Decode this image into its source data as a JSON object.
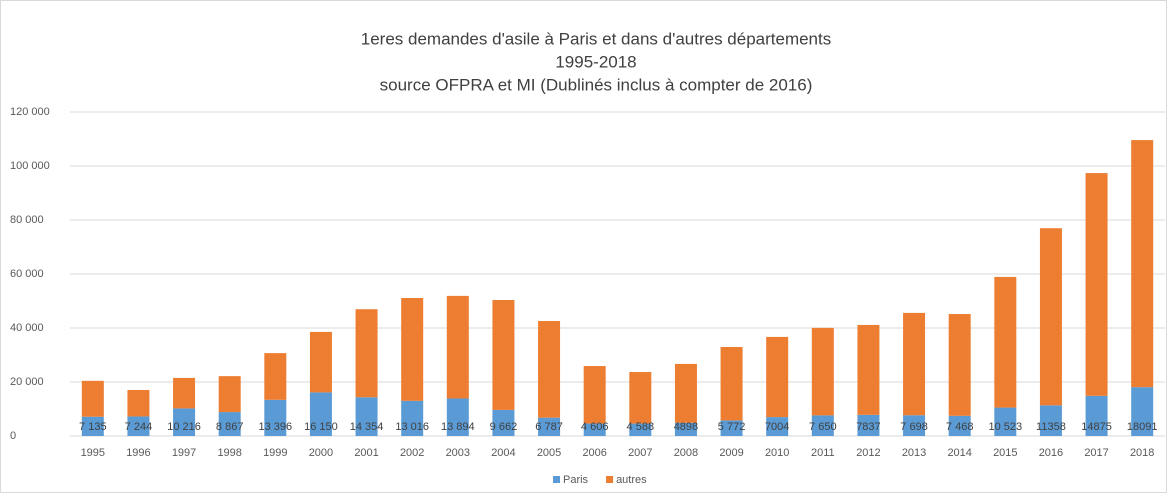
{
  "chart_data": {
    "type": "stacked_bar",
    "title": "1eres demandes d'asile à Paris et dans d'autres départements",
    "subtitle": [
      "1995-2018",
      "source OFPRA et MI (Dublinés inclus à compter de 2016)"
    ],
    "categories": [
      "1995",
      "1996",
      "1997",
      "1998",
      "1999",
      "2000",
      "2001",
      "2002",
      "2003",
      "2004",
      "2005",
      "2006",
      "2007",
      "2008",
      "2009",
      "2010",
      "2011",
      "2012",
      "2013",
      "2014",
      "2015",
      "2016",
      "2017",
      "2018"
    ],
    "series": [
      {
        "name": "Paris",
        "color": "#5b9bd5",
        "values": [
          7135,
          7244,
          10216,
          8867,
          13396,
          16150,
          14354,
          13016,
          13894,
          9662,
          6787,
          4606,
          4588,
          4898,
          5772,
          7004,
          7650,
          7837,
          7698,
          7468,
          10523,
          11358,
          14875,
          18091
        ],
        "value_labels": [
          "7 135",
          "7 244",
          "10 216",
          "8 867",
          "13 396",
          "16 150",
          "14 354",
          "13 016",
          "13 894",
          "9 662",
          "6 787",
          "4 606",
          "4 588",
          "4898",
          "5 772",
          "7004",
          "7 650",
          "7837",
          "7 698",
          "7 468",
          "10 523",
          "11358",
          "14875",
          "18091"
        ]
      },
      {
        "name": "autres",
        "color": "#ed7d31",
        "values": [
          13300,
          9800,
          11300,
          13300,
          17300,
          22400,
          32600,
          38100,
          38000,
          40700,
          35800,
          21300,
          19100,
          21800,
          27200,
          29700,
          32400,
          33300,
          37900,
          37700,
          48400,
          65600,
          82500,
          91500
        ]
      }
    ],
    "ylim": [
      0,
      120000
    ],
    "yticks": [
      0,
      {
        "value": 20000,
        "label": "20 000"
      },
      {
        "value": 40000,
        "label": "40 000"
      },
      {
        "value": 60000,
        "label": "60 000"
      },
      {
        "value": 80000,
        "label": "80 000"
      },
      {
        "value": 100000,
        "label": "100 000"
      },
      {
        "value": 120000,
        "label": "120 000"
      }
    ],
    "grid": true,
    "legend": "bottom"
  }
}
